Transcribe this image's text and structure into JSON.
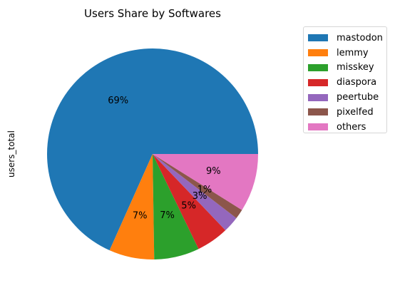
{
  "chart_data": {
    "type": "pie",
    "title": "Users Share by Softwares",
    "ylabel": "users_total",
    "start_angle_deg": 0,
    "direction": "counterclockwise",
    "legend_position": "outside-top-right",
    "slices": [
      {
        "label": "mastodon",
        "value": 69,
        "pct_label": "69%",
        "color": "#1f77b4"
      },
      {
        "label": "lemmy",
        "value": 7,
        "pct_label": "7%",
        "color": "#ff7f0e"
      },
      {
        "label": "misskey",
        "value": 7,
        "pct_label": "7%",
        "color": "#2ca02c"
      },
      {
        "label": "diaspora",
        "value": 5,
        "pct_label": "5%",
        "color": "#d62728"
      },
      {
        "label": "peertube",
        "value": 2.5,
        "pct_label": "3%",
        "color": "#9467bd"
      },
      {
        "label": "pixelfed",
        "value": 1.5,
        "pct_label": "1%",
        "color": "#8c564b"
      },
      {
        "label": "others",
        "value": 9,
        "pct_label": "9%",
        "color": "#e377c2"
      }
    ]
  }
}
